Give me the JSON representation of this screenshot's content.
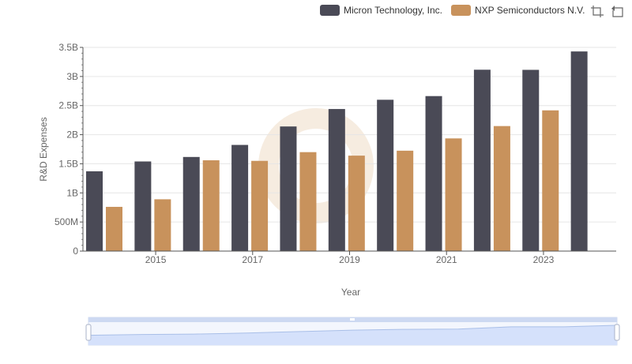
{
  "legend": {
    "items": [
      {
        "name": "Micron Technology, Inc.",
        "color": "#4a4a56"
      },
      {
        "name": "NXP Semiconductors N.V.",
        "color": "#c8925c"
      }
    ]
  },
  "toolbox": {
    "icons": [
      "crop-icon",
      "restore-icon"
    ]
  },
  "chart_data": {
    "type": "bar",
    "title": "",
    "xlabel": "Year",
    "ylabel": "R&D Expenses",
    "ylim": [
      0,
      3500000000
    ],
    "y_ticks": [
      {
        "value": 0,
        "label": "0"
      },
      {
        "value": 500000000,
        "label": "500M"
      },
      {
        "value": 1000000000,
        "label": "1B"
      },
      {
        "value": 1500000000,
        "label": "1.5B"
      },
      {
        "value": 2000000000,
        "label": "2B"
      },
      {
        "value": 2500000000,
        "label": "2.5B"
      },
      {
        "value": 3000000000,
        "label": "3B"
      },
      {
        "value": 3500000000,
        "label": "3.5B"
      }
    ],
    "categories": [
      "2014",
      "2015",
      "2016",
      "2017",
      "2018",
      "2019",
      "2020",
      "2021",
      "2022",
      "2023",
      "2024"
    ],
    "x_tick_labels": [
      "2015",
      "2017",
      "2019",
      "2021",
      "2023"
    ],
    "grid": true,
    "legend_position": "top-right",
    "series": [
      {
        "name": "Micron Technology, Inc.",
        "color": "#4a4a56",
        "values": [
          1371000000,
          1540000000,
          1617000000,
          1824000000,
          2141000000,
          2441000000,
          2600000000,
          2663000000,
          3116000000,
          3114000000,
          3430000000
        ]
      },
      {
        "name": "NXP Semiconductors N.V.",
        "color": "#c8925c",
        "values": [
          760000000,
          890000000,
          1560000000,
          1550000000,
          1700000000,
          1640000000,
          1725000000,
          1936000000,
          2148000000,
          2418000000,
          null
        ]
      }
    ]
  }
}
